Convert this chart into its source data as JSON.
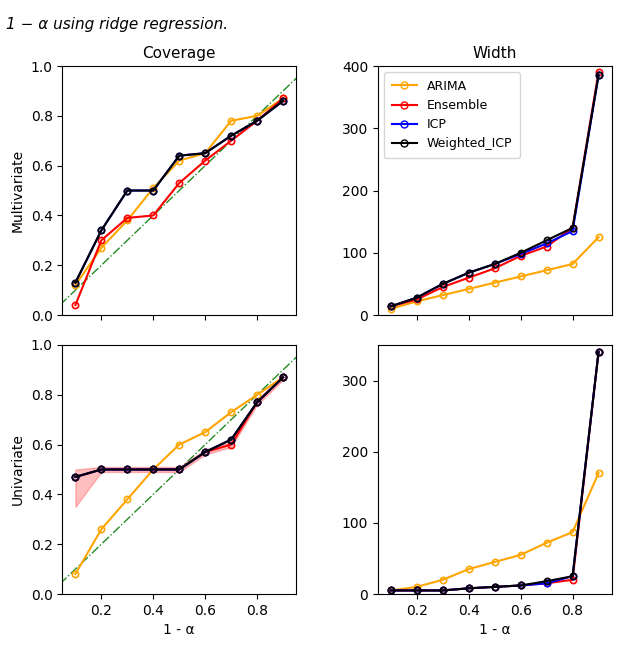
{
  "x": [
    0.1,
    0.2,
    0.3,
    0.4,
    0.5,
    0.6,
    0.7,
    0.8,
    0.9
  ],
  "multi_cov_ARIMA": [
    0.12,
    0.27,
    0.38,
    0.51,
    0.62,
    0.65,
    0.78,
    0.8,
    0.87
  ],
  "multi_cov_Ensemble": [
    0.04,
    0.3,
    0.39,
    0.4,
    0.53,
    0.62,
    0.7,
    0.78,
    0.87
  ],
  "multi_cov_ICP": [
    0.13,
    0.34,
    0.5,
    0.5,
    0.64,
    0.65,
    0.72,
    0.78,
    0.86
  ],
  "multi_cov_WICP": [
    0.13,
    0.34,
    0.5,
    0.5,
    0.64,
    0.65,
    0.72,
    0.78,
    0.86
  ],
  "multi_wid_ARIMA": [
    10,
    22,
    32,
    42,
    52,
    62,
    72,
    82,
    125
  ],
  "multi_wid_Ensemble": [
    14,
    25,
    45,
    60,
    75,
    95,
    110,
    140,
    390
  ],
  "multi_wid_ICP": [
    14,
    28,
    50,
    68,
    82,
    98,
    115,
    135,
    385
  ],
  "multi_wid_WICP": [
    14,
    28,
    50,
    68,
    82,
    100,
    120,
    140,
    385
  ],
  "uni_cov_ARIMA": [
    0.08,
    0.26,
    0.38,
    0.5,
    0.6,
    0.65,
    0.73,
    0.8,
    0.87
  ],
  "uni_cov_Ensemble": [
    0.47,
    0.5,
    0.5,
    0.5,
    0.5,
    0.57,
    0.6,
    0.77,
    0.87
  ],
  "uni_cov_ICP": [
    0.47,
    0.5,
    0.5,
    0.5,
    0.5,
    0.57,
    0.62,
    0.77,
    0.87
  ],
  "uni_cov_WICP": [
    0.47,
    0.5,
    0.5,
    0.5,
    0.5,
    0.57,
    0.62,
    0.77,
    0.87
  ],
  "uni_cov_Ensemble_fill_upper": [
    0.5,
    0.51,
    0.51,
    0.51,
    0.51,
    0.58,
    0.61,
    0.78,
    0.88
  ],
  "uni_cov_Ensemble_fill_lower": [
    0.35,
    0.49,
    0.49,
    0.49,
    0.49,
    0.56,
    0.59,
    0.76,
    0.86
  ],
  "uni_wid_ARIMA": [
    5,
    10,
    20,
    35,
    45,
    55,
    72,
    87,
    170
  ],
  "uni_wid_Ensemble": [
    5,
    5,
    5,
    8,
    10,
    12,
    15,
    20,
    340
  ],
  "uni_wid_ICP": [
    5,
    5,
    5,
    8,
    10,
    12,
    15,
    25,
    340
  ],
  "uni_wid_WICP": [
    5,
    5,
    5,
    8,
    10,
    12,
    18,
    25,
    340
  ],
  "colors": {
    "ARIMA": "#FFA500",
    "Ensemble": "#FF0000",
    "ICP": "#0000FF",
    "WICP": "#000000"
  },
  "xlabel": "1 - α",
  "diagonal_color": "#228B22",
  "title_text": "1 − α using ridge regression."
}
